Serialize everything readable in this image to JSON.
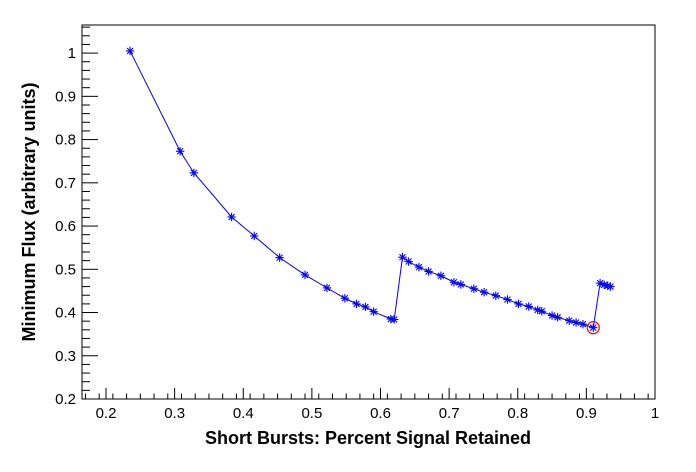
{
  "chart_data": {
    "type": "line",
    "xlabel": "Short Bursts: Percent Signal Retained",
    "ylabel": "Minimum Flux (arbitrary units)",
    "xlim": [
      0.165,
      1.0
    ],
    "ylim": [
      0.2,
      1.065
    ],
    "xticks": [
      {
        "v": 0.2,
        "label": "0.2"
      },
      {
        "v": 0.3,
        "label": "0.3"
      },
      {
        "v": 0.4,
        "label": "0.4"
      },
      {
        "v": 0.5,
        "label": "0.5"
      },
      {
        "v": 0.6,
        "label": "0.6"
      },
      {
        "v": 0.7,
        "label": "0.7"
      },
      {
        "v": 0.8,
        "label": "0.8"
      },
      {
        "v": 0.9,
        "label": "0.9"
      },
      {
        "v": 1.0,
        "label": "1"
      }
    ],
    "yticks": [
      {
        "v": 0.2,
        "label": "0.2"
      },
      {
        "v": 0.3,
        "label": "0.3"
      },
      {
        "v": 0.4,
        "label": "0.4"
      },
      {
        "v": 0.5,
        "label": "0.5"
      },
      {
        "v": 0.6,
        "label": "0.6"
      },
      {
        "v": 0.7,
        "label": "0.7"
      },
      {
        "v": 0.8,
        "label": "0.8"
      },
      {
        "v": 0.9,
        "label": "0.9"
      },
      {
        "v": 1.0,
        "label": "1"
      }
    ],
    "grid": false,
    "series": [
      {
        "color": "#0000ff",
        "marker": "asterisk",
        "x": [
          0.235,
          0.308,
          0.328,
          0.383,
          0.416,
          0.453,
          0.49,
          0.522,
          0.548,
          0.565,
          0.578,
          0.59,
          0.615,
          0.62,
          0.632,
          0.641,
          0.656,
          0.67,
          0.688,
          0.707,
          0.717,
          0.736,
          0.751,
          0.768,
          0.785,
          0.801,
          0.816,
          0.829,
          0.835,
          0.85,
          0.858,
          0.875,
          0.885,
          0.895,
          0.91,
          0.92,
          0.926,
          0.931,
          0.935
        ],
        "y": [
          1.005,
          0.773,
          0.723,
          0.621,
          0.577,
          0.527,
          0.487,
          0.457,
          0.433,
          0.42,
          0.413,
          0.402,
          0.385,
          0.384,
          0.528,
          0.518,
          0.505,
          0.495,
          0.485,
          0.47,
          0.465,
          0.455,
          0.447,
          0.439,
          0.43,
          0.42,
          0.414,
          0.406,
          0.403,
          0.393,
          0.389,
          0.381,
          0.377,
          0.373,
          0.365,
          0.468,
          0.464,
          0.462,
          0.46
        ]
      }
    ],
    "highlight": {
      "x": 0.91,
      "y": 0.365,
      "color": "#ff0000",
      "shape": "circle"
    }
  }
}
